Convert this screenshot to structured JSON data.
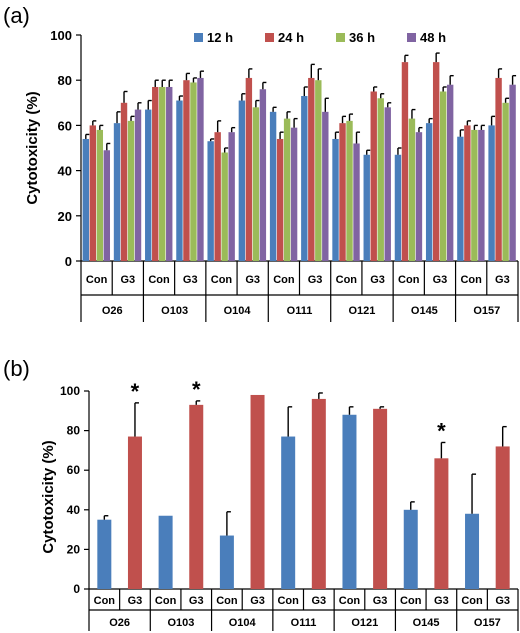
{
  "chart_data": [
    {
      "panel": "(a)",
      "type": "bar",
      "ylabel": "Cytotoxicity (%)",
      "ylim": [
        0,
        100
      ],
      "yticks": [
        "0",
        "20",
        "40",
        "60",
        "80",
        "100"
      ],
      "groups": [
        "O26",
        "O103",
        "O104",
        "O111",
        "O121",
        "O145",
        "O157"
      ],
      "subcategories": [
        "Con",
        "G3"
      ],
      "legend_position": "top",
      "series": [
        {
          "name": "12 h",
          "color": "#4a7ebb",
          "values": [
            54,
            61,
            67,
            71,
            53,
            71,
            66,
            73,
            54,
            47,
            47,
            61,
            55,
            60
          ],
          "errors": [
            2,
            5,
            4,
            2,
            1,
            3,
            2,
            4,
            3,
            2,
            3,
            2,
            3,
            4
          ]
        },
        {
          "name": "24 h",
          "color": "#c0504d",
          "values": [
            60,
            70,
            77,
            80,
            57,
            81,
            54,
            81,
            61,
            75,
            88,
            88,
            60,
            81
          ],
          "errors": [
            2,
            5,
            3,
            3,
            5,
            4,
            3,
            6,
            3,
            2,
            3,
            4,
            2,
            4
          ]
        },
        {
          "name": "36 h",
          "color": "#9bbb59",
          "values": [
            58,
            62,
            77,
            79,
            48,
            68,
            63,
            80,
            62,
            72,
            63,
            75,
            58,
            70
          ],
          "errors": [
            2,
            2,
            3,
            2,
            2,
            3,
            3,
            5,
            3,
            2,
            4,
            2,
            2,
            2
          ]
        },
        {
          "name": "48 h",
          "color": "#8064a2",
          "values": [
            49,
            67,
            77,
            81,
            57,
            76,
            59,
            66,
            52,
            68,
            57,
            78,
            58,
            78
          ],
          "errors": [
            3,
            3,
            3,
            3,
            2,
            3,
            4,
            6,
            5,
            2,
            2,
            4,
            2,
            4
          ]
        }
      ]
    },
    {
      "panel": "(b)",
      "type": "bar",
      "ylabel": "Cytotoxicity (%)",
      "ylim": [
        0,
        100
      ],
      "yticks": [
        "0",
        "20",
        "40",
        "60",
        "80",
        "100"
      ],
      "groups": [
        "O26",
        "O103",
        "O104",
        "O111",
        "O121",
        "O145",
        "O157"
      ],
      "subcategories": [
        "Con",
        "G3"
      ],
      "colors": {
        "Con": "#4a7ebb",
        "G3": "#c0504d"
      },
      "values": [
        35,
        77,
        37,
        93,
        27,
        98,
        77,
        96,
        88,
        91,
        40,
        66,
        38,
        72
      ],
      "errors": [
        2,
        17,
        0,
        2,
        12,
        0,
        15,
        3,
        4,
        1,
        4,
        8,
        20,
        10
      ],
      "significance_marker": "*",
      "significant": [
        false,
        true,
        false,
        true,
        false,
        false,
        false,
        false,
        false,
        false,
        false,
        true,
        false,
        false
      ]
    }
  ]
}
